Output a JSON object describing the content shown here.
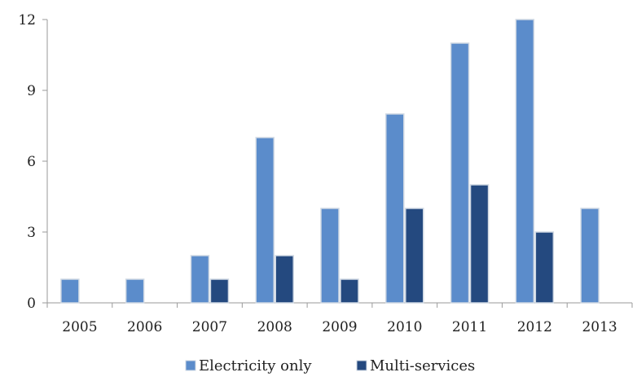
{
  "chart_data": {
    "type": "bar",
    "title": "",
    "xlabel": "",
    "ylabel": "",
    "categories": [
      "2005",
      "2006",
      "2007",
      "2008",
      "2009",
      "2010",
      "2011",
      "2012",
      "2013"
    ],
    "series": [
      {
        "name": "Electricity only",
        "color": "#5B8CCB",
        "values": [
          1,
          1,
          2,
          7,
          4,
          8,
          11,
          12,
          4
        ]
      },
      {
        "name": "Multi-services",
        "color": "#24497F",
        "values": [
          0,
          0,
          1,
          2,
          1,
          4,
          5,
          3,
          0
        ]
      }
    ],
    "ylim": [
      0,
      12
    ],
    "yticks": [
      "0",
      "3",
      "6",
      "9",
      "12"
    ],
    "grid": false,
    "legend_position": "bottom"
  }
}
